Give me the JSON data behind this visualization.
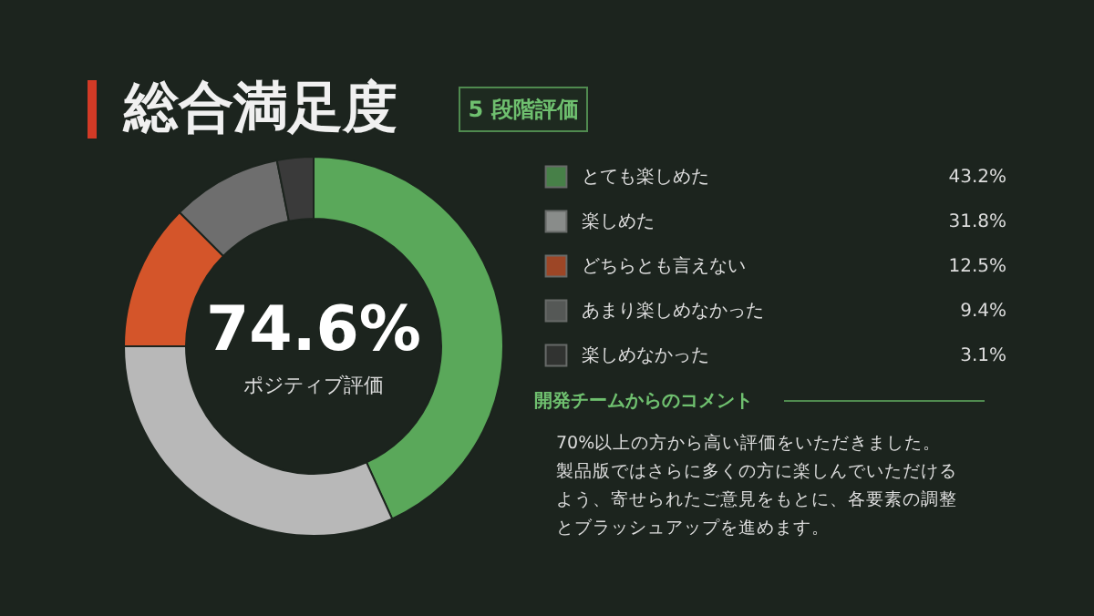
{
  "chart_data": {
    "type": "donut",
    "title": "総合満足度",
    "subtitle": "5 段階評価",
    "categories": [
      "とても楽しめた",
      "楽しめた",
      "どちらとも言えない",
      "あまり楽しめなかった",
      "楽しめなかった"
    ],
    "values": [
      43.2,
      31.8,
      12.5,
      9.4,
      3.1
    ],
    "colors": [
      "#5aa85a",
      "#b8b8b8",
      "#d4552a",
      "#6e6e6e",
      "#3a3a3a"
    ],
    "value_labels": [
      "43.2%",
      "31.8%",
      "12.5%",
      "9.4%",
      "3.1%"
    ],
    "legend": "right",
    "annotations": [
      "74.6%",
      "ポジティブ評価",
      "開発チームからのコメント",
      "70%以上の方から高い評価をいただきました。",
      "製品版ではさらに多くの方に楽しんでいただける",
      "よう、寄せられたご意見をもとに、各要素の調整",
      "とブラッシュアップを進めます。"
    ]
  }
}
